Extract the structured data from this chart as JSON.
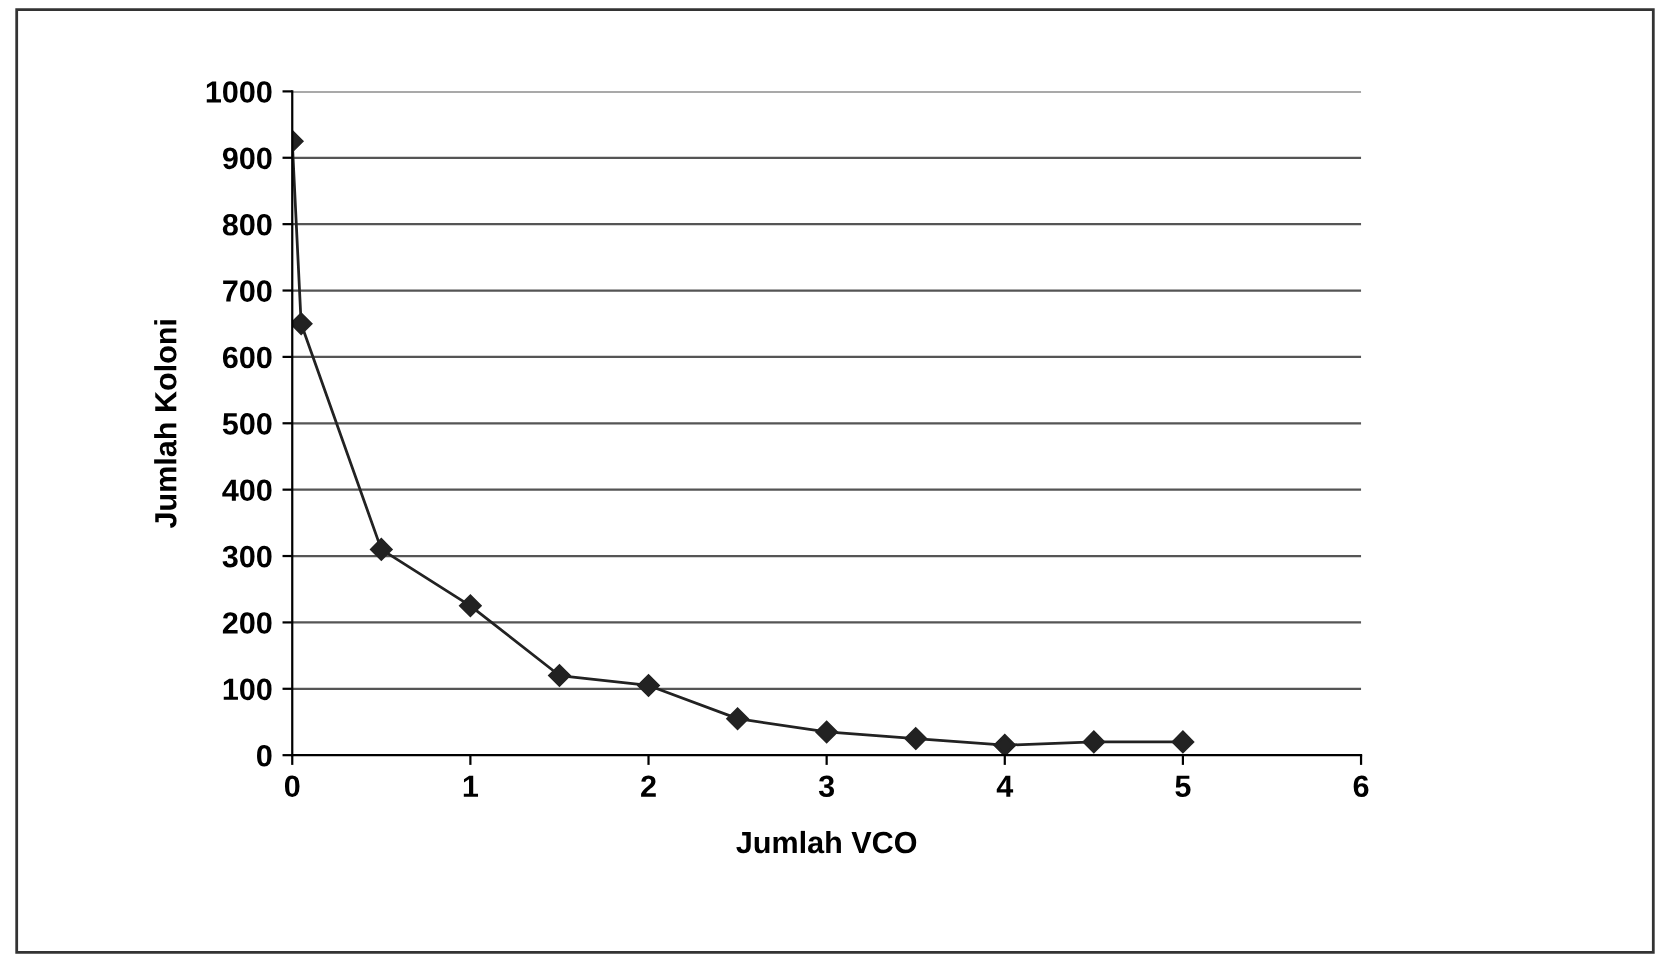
{
  "chart_data": {
    "type": "line",
    "xlabel": "Jumlah VCO",
    "ylabel": "Jumlah Koloni",
    "series": [
      {
        "color": "#222222",
        "x": [
          0,
          0.05,
          0.5,
          1,
          1.5,
          2,
          2.5,
          3,
          3.5,
          4,
          4.5,
          5
        ],
        "values": [
          925,
          650,
          310,
          225,
          120,
          105,
          55,
          35,
          25,
          15,
          20,
          20
        ]
      }
    ],
    "xlim": [
      0,
      6
    ],
    "xticks": [
      0,
      1,
      2,
      3,
      4,
      5,
      6
    ],
    "ylim": [
      0,
      1000
    ],
    "yticks": [
      0,
      100,
      200,
      300,
      400,
      500,
      600,
      700,
      800,
      900,
      1000
    ],
    "grid": "y",
    "marker": "diamond",
    "line_style": "solid",
    "legend": false
  }
}
